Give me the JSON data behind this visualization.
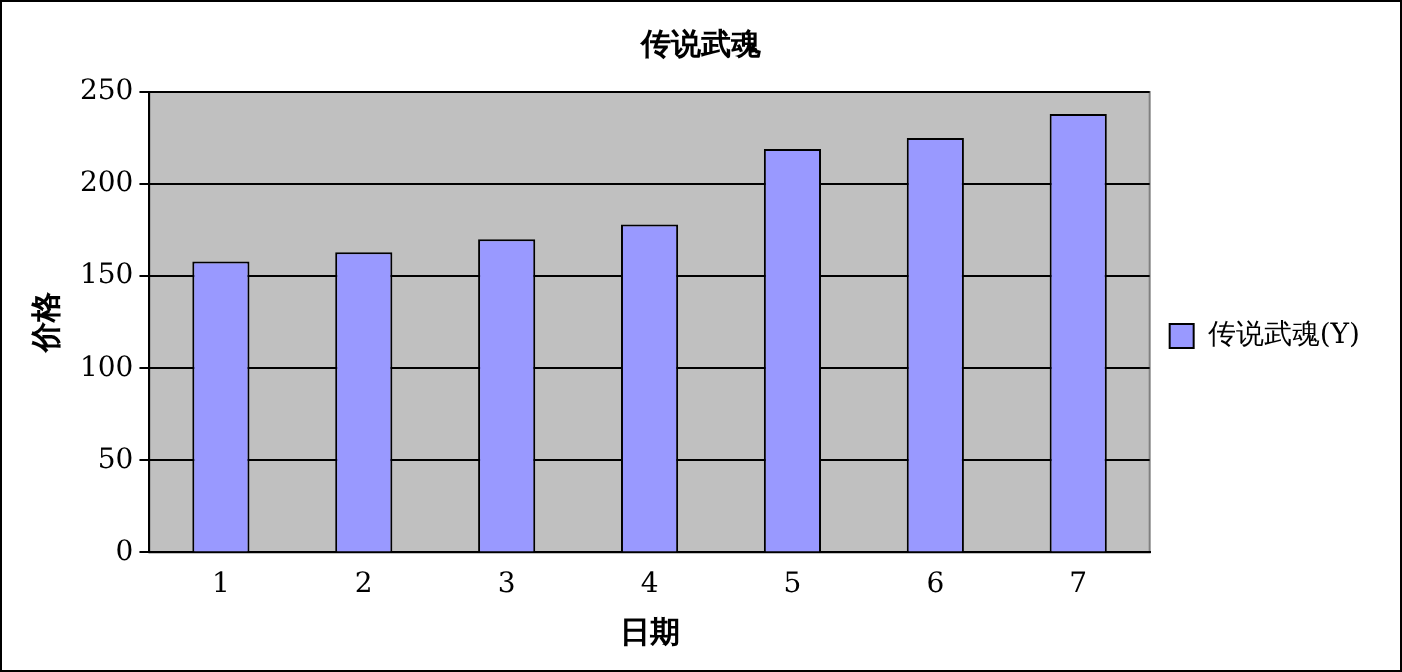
{
  "chart_data": {
    "type": "bar",
    "title": "传说武魂",
    "xlabel": "日期",
    "ylabel": "价格",
    "categories": [
      "1",
      "2",
      "3",
      "4",
      "5",
      "6",
      "7"
    ],
    "series": [
      {
        "name": "传说武魂(Y)",
        "color": "#9999ff",
        "values": [
          158,
          163,
          170,
          178,
          219,
          225,
          238
        ]
      }
    ],
    "ylim": [
      0,
      250
    ],
    "yticks": [
      0,
      50,
      100,
      150,
      200,
      250
    ],
    "grid": "y",
    "legend": "right"
  }
}
